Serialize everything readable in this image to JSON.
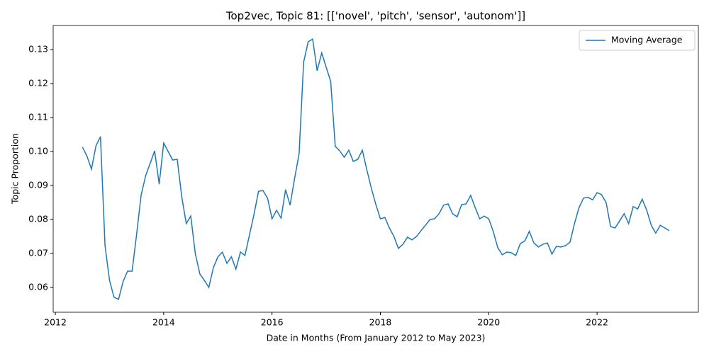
{
  "chart_data": {
    "type": "line",
    "title": "Top2vec, Topic 81: [['novel', 'pitch', 'sensor', 'autonom']]",
    "x_label": "Date in Months (From January 2012 to May 2023)",
    "y_label": "Topic Proportion",
    "x": [
      2012.5,
      2012.583,
      2012.667,
      2012.75,
      2012.833,
      2012.917,
      2013.0,
      2013.083,
      2013.167,
      2013.25,
      2013.333,
      2013.417,
      2013.5,
      2013.583,
      2013.667,
      2013.75,
      2013.833,
      2013.917,
      2014.0,
      2014.083,
      2014.167,
      2014.25,
      2014.333,
      2014.417,
      2014.5,
      2014.583,
      2014.667,
      2014.75,
      2014.833,
      2014.917,
      2015.0,
      2015.083,
      2015.167,
      2015.25,
      2015.333,
      2015.417,
      2015.5,
      2015.583,
      2015.667,
      2015.75,
      2015.833,
      2015.917,
      2016.0,
      2016.083,
      2016.167,
      2016.25,
      2016.333,
      2016.417,
      2016.5,
      2016.583,
      2016.667,
      2016.75,
      2016.833,
      2016.917,
      2017.0,
      2017.083,
      2017.167,
      2017.25,
      2017.333,
      2017.417,
      2017.5,
      2017.583,
      2017.667,
      2017.75,
      2017.833,
      2017.917,
      2018.0,
      2018.083,
      2018.167,
      2018.25,
      2018.333,
      2018.417,
      2018.5,
      2018.583,
      2018.667,
      2018.75,
      2018.833,
      2018.917,
      2019.0,
      2019.083,
      2019.167,
      2019.25,
      2019.333,
      2019.417,
      2019.5,
      2019.583,
      2019.667,
      2019.75,
      2019.833,
      2019.917,
      2020.0,
      2020.083,
      2020.167,
      2020.25,
      2020.333,
      2020.417,
      2020.5,
      2020.583,
      2020.667,
      2020.75,
      2020.833,
      2020.917,
      2021.0,
      2021.083,
      2021.167,
      2021.25,
      2021.333,
      2021.417,
      2021.5,
      2021.583,
      2021.667,
      2021.75,
      2021.833,
      2021.917,
      2022.0,
      2022.083,
      2022.167,
      2022.25,
      2022.333,
      2022.417,
      2022.5,
      2022.583,
      2022.667,
      2022.75,
      2022.833,
      2022.917,
      2023.0,
      2023.083,
      2023.167,
      2023.25,
      2023.333
    ],
    "series": [
      {
        "name": "Moving Average",
        "color": "#1f77b4",
        "values": [
          0.1013,
          0.0987,
          0.0948,
          0.1017,
          0.1044,
          0.0723,
          0.0621,
          0.0571,
          0.0565,
          0.0617,
          0.0648,
          0.0648,
          0.0756,
          0.0871,
          0.0929,
          0.0965,
          0.1002,
          0.0904,
          0.1025,
          0.1,
          0.0975,
          0.0977,
          0.0867,
          0.0788,
          0.081,
          0.07,
          0.064,
          0.0621,
          0.06,
          0.0658,
          0.069,
          0.0704,
          0.0671,
          0.069,
          0.0654,
          0.0704,
          0.0694,
          0.0754,
          0.0815,
          0.0883,
          0.0885,
          0.0863,
          0.0802,
          0.0827,
          0.0804,
          0.0888,
          0.0842,
          0.0921,
          0.0994,
          0.1263,
          0.1323,
          0.1331,
          0.1238,
          0.129,
          0.1248,
          0.1206,
          0.1015,
          0.1002,
          0.0983,
          0.1004,
          0.0971,
          0.0977,
          0.1004,
          0.0946,
          0.0892,
          0.0844,
          0.0802,
          0.0806,
          0.0775,
          0.075,
          0.0715,
          0.0727,
          0.0748,
          0.074,
          0.075,
          0.0767,
          0.0783,
          0.08,
          0.0802,
          0.0817,
          0.0842,
          0.0846,
          0.0817,
          0.0808,
          0.0844,
          0.0846,
          0.0871,
          0.0835,
          0.0802,
          0.081,
          0.0802,
          0.0765,
          0.0717,
          0.0696,
          0.0704,
          0.0702,
          0.0694,
          0.0729,
          0.0737,
          0.0765,
          0.0731,
          0.0719,
          0.0727,
          0.0731,
          0.0698,
          0.0721,
          0.0719,
          0.0723,
          0.0733,
          0.0788,
          0.0835,
          0.0863,
          0.0865,
          0.0858,
          0.0879,
          0.0873,
          0.085,
          0.0779,
          0.0775,
          0.0796,
          0.0817,
          0.0788,
          0.0838,
          0.0831,
          0.086,
          0.0827,
          0.0783,
          0.076,
          0.0783,
          0.0775,
          0.0767
        ]
      }
    ],
    "xlim": [
      2011.96,
      2023.87
    ],
    "ylim": [
      0.0527,
      0.1371
    ],
    "xticks": [
      2012,
      2014,
      2016,
      2018,
      2020,
      2022
    ],
    "yticks": [
      0.06,
      0.07,
      0.08,
      0.09,
      {
        "value": 0.1,
        "label": "0.10"
      },
      0.11,
      0.12,
      0.13
    ],
    "grid": false,
    "legend": "upper-right"
  }
}
